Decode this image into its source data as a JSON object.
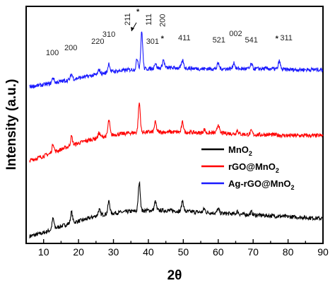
{
  "chart_data": {
    "type": "line",
    "xlabel": "2θ",
    "ylabel": "Intensity (a.u.)",
    "xlim": [
      5,
      90
    ],
    "xticks": [
      10,
      20,
      30,
      40,
      50,
      60,
      70,
      80,
      90
    ],
    "legend_position": "right",
    "grid": false,
    "series": [
      {
        "name": "MnO",
        "name_sub": "2",
        "color": "#000000",
        "offset": 0.0,
        "baseline": [
          [
            6,
            0.02
          ],
          [
            10,
            0.06
          ],
          [
            14,
            0.12
          ],
          [
            18,
            0.17
          ],
          [
            22,
            0.21
          ],
          [
            26,
            0.26
          ],
          [
            30,
            0.28
          ],
          [
            35,
            0.3
          ],
          [
            40,
            0.31
          ],
          [
            45,
            0.31
          ],
          [
            50,
            0.3
          ],
          [
            55,
            0.29
          ],
          [
            60,
            0.28
          ],
          [
            65,
            0.27
          ],
          [
            70,
            0.26
          ],
          [
            75,
            0.25
          ],
          [
            80,
            0.24
          ],
          [
            85,
            0.23
          ],
          [
            90,
            0.22
          ]
        ],
        "peaks": [
          [
            12.7,
            0.12
          ],
          [
            18.0,
            0.12
          ],
          [
            25.9,
            0.06
          ],
          [
            28.7,
            0.14
          ],
          [
            37.4,
            0.32
          ],
          [
            42.0,
            0.1
          ],
          [
            49.8,
            0.12
          ],
          [
            56.0,
            0.04
          ],
          [
            60.0,
            0.05
          ],
          [
            65.5,
            0.03
          ],
          [
            69.5,
            0.03
          ]
        ]
      },
      {
        "name": "rGO@MnO",
        "name_sub": "2",
        "color": "#ff0000",
        "offset": 0.85,
        "baseline": [
          [
            6,
            0.02
          ],
          [
            10,
            0.07
          ],
          [
            14,
            0.13
          ],
          [
            18,
            0.19
          ],
          [
            22,
            0.24
          ],
          [
            26,
            0.28
          ],
          [
            30,
            0.31
          ],
          [
            35,
            0.33
          ],
          [
            40,
            0.34
          ],
          [
            45,
            0.34
          ],
          [
            50,
            0.34
          ],
          [
            55,
            0.33
          ],
          [
            60,
            0.33
          ],
          [
            65,
            0.32
          ],
          [
            70,
            0.31
          ],
          [
            75,
            0.31
          ],
          [
            80,
            0.3
          ],
          [
            85,
            0.3
          ],
          [
            90,
            0.3
          ]
        ],
        "peaks": [
          [
            12.7,
            0.1
          ],
          [
            18.0,
            0.1
          ],
          [
            25.9,
            0.05
          ],
          [
            28.7,
            0.17
          ],
          [
            37.4,
            0.33
          ],
          [
            42.0,
            0.11
          ],
          [
            49.8,
            0.11
          ],
          [
            56.0,
            0.04
          ],
          [
            60.0,
            0.1
          ],
          [
            65.5,
            0.04
          ],
          [
            69.5,
            0.04
          ]
        ]
      },
      {
        "name": "Ag-rGO@MnO",
        "name_sub": "2",
        "color": "#1a1aff",
        "offset": 1.65,
        "baseline": [
          [
            6,
            0.05
          ],
          [
            10,
            0.07
          ],
          [
            14,
            0.1
          ],
          [
            18,
            0.13
          ],
          [
            22,
            0.16
          ],
          [
            26,
            0.19
          ],
          [
            30,
            0.22
          ],
          [
            35,
            0.24
          ],
          [
            40,
            0.25
          ],
          [
            45,
            0.26
          ],
          [
            50,
            0.26
          ],
          [
            55,
            0.25
          ],
          [
            60,
            0.25
          ],
          [
            65,
            0.25
          ],
          [
            70,
            0.25
          ],
          [
            75,
            0.25
          ],
          [
            80,
            0.24
          ],
          [
            85,
            0.24
          ],
          [
            90,
            0.24
          ]
        ],
        "peaks": [
          [
            12.7,
            0.06
          ],
          [
            18.0,
            0.06
          ],
          [
            25.9,
            0.05
          ],
          [
            28.7,
            0.1
          ],
          [
            36.8,
            0.12
          ],
          [
            38.1,
            0.42
          ],
          [
            42.0,
            0.06
          ],
          [
            44.3,
            0.09
          ],
          [
            49.8,
            0.08
          ],
          [
            60.0,
            0.06
          ],
          [
            64.5,
            0.07
          ],
          [
            69.5,
            0.05
          ],
          [
            77.5,
            0.09
          ]
        ]
      }
    ],
    "annotations": [
      {
        "text": "100",
        "x": 12.5
      },
      {
        "text": "200",
        "x": 17.8
      },
      {
        "text": "220",
        "x": 25.5
      },
      {
        "text": "310",
        "x": 28.7
      },
      {
        "text": "211",
        "x": 34.7
      },
      {
        "text": "*",
        "x": 37.0
      },
      {
        "text": "111",
        "x": 40.8
      },
      {
        "text": "301",
        "x": 41.2
      },
      {
        "text": "*",
        "x": 44.0
      },
      {
        "text": "200",
        "x": 44.8
      },
      {
        "text": "411",
        "x": 50.3
      },
      {
        "text": "521",
        "x": 60.2
      },
      {
        "text": "002",
        "x": 65.0
      },
      {
        "text": "541",
        "x": 69.5
      },
      {
        "text": "*",
        "x": 76.8
      },
      {
        "text": "311",
        "x": 79.5
      }
    ]
  }
}
